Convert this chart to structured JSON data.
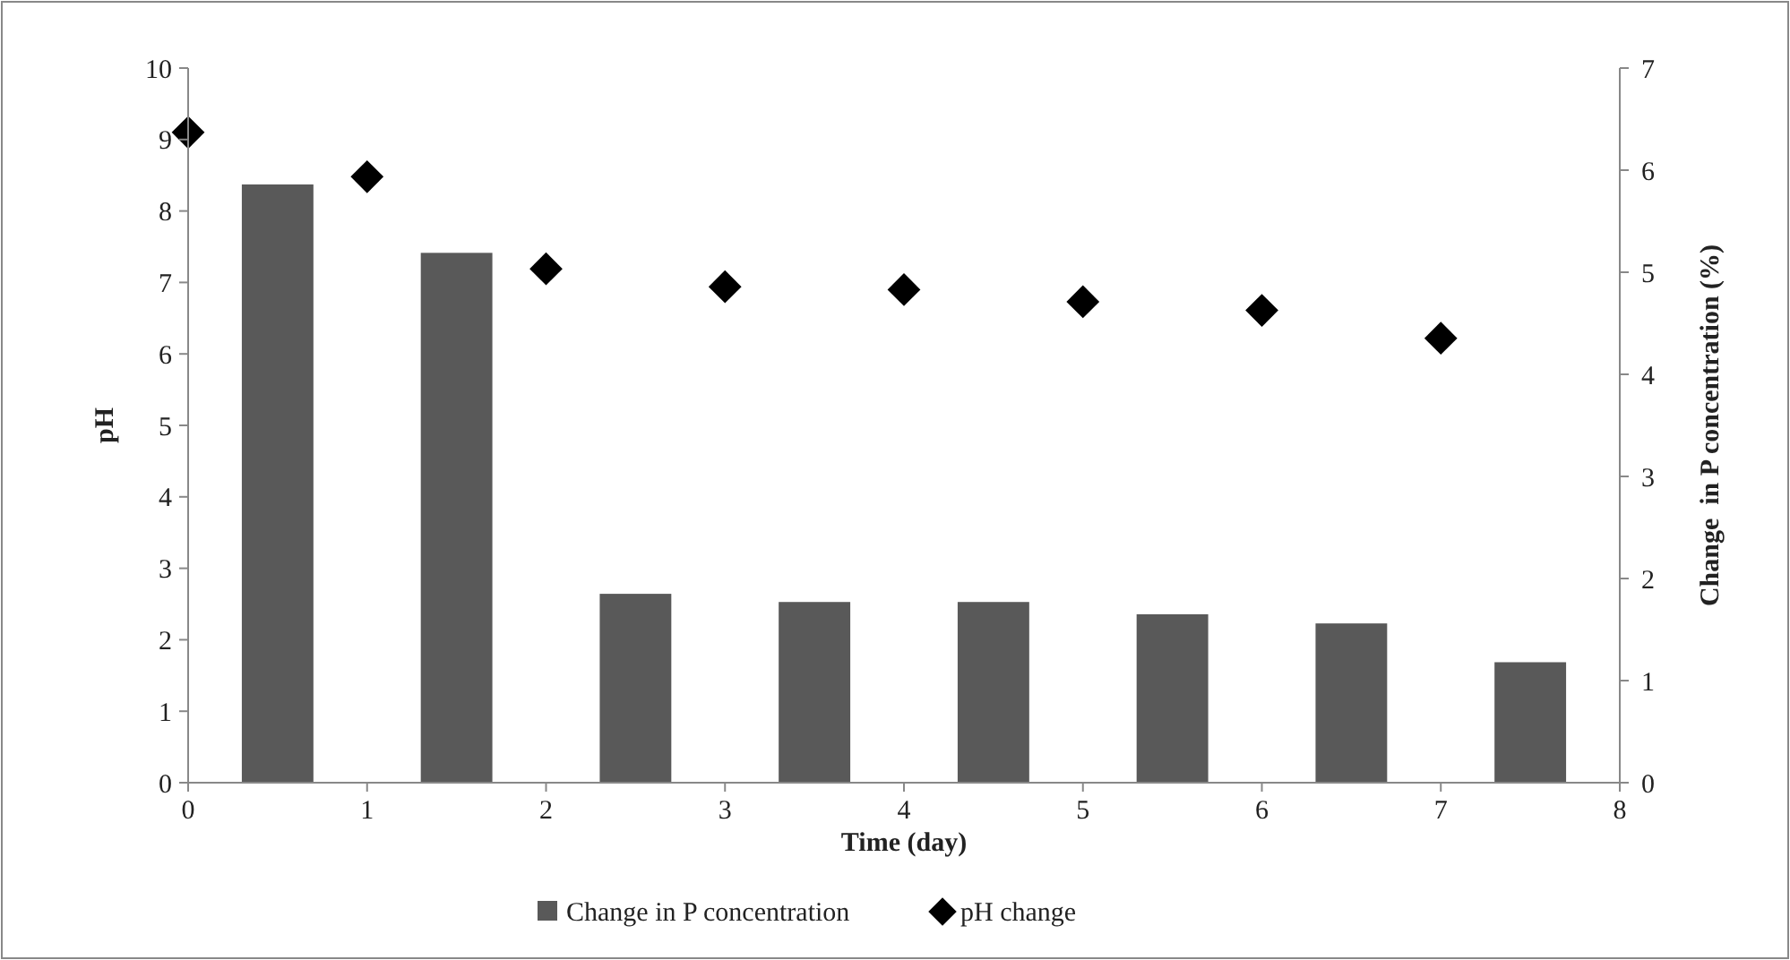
{
  "chart_data": {
    "type": "bar",
    "xlabel": "Time (day)",
    "ylabel": "pH",
    "y2label": "Change  in P concentration (%)",
    "xlim": [
      0,
      8
    ],
    "xticks": [
      0,
      1,
      2,
      3,
      4,
      5,
      6,
      7,
      8
    ],
    "ylim": [
      0,
      10
    ],
    "yticks": [
      0,
      1,
      2,
      3,
      4,
      5,
      6,
      7,
      8,
      9,
      10
    ],
    "y2lim": [
      0,
      7
    ],
    "y2ticks": [
      0,
      1,
      2,
      3,
      4,
      5,
      6,
      7
    ],
    "legend": "bottom",
    "grid": false,
    "series": [
      {
        "name": "Change in P concentration",
        "axis": "y2",
        "color": "#595959",
        "x": [
          0.5,
          1.5,
          2.5,
          3.5,
          4.5,
          5.5,
          6.5,
          7.5
        ],
        "values": [
          5.86,
          5.19,
          1.85,
          1.77,
          1.77,
          1.65,
          1.56,
          1.18
        ]
      },
      {
        "name": "pH change",
        "type": "scatter",
        "marker": "diamond",
        "color": "#000000",
        "x": [
          0,
          1,
          2,
          3,
          4,
          5,
          6,
          7
        ],
        "values": [
          9.1,
          8.48,
          7.19,
          6.94,
          6.9,
          6.73,
          6.61,
          6.22
        ]
      }
    ]
  }
}
